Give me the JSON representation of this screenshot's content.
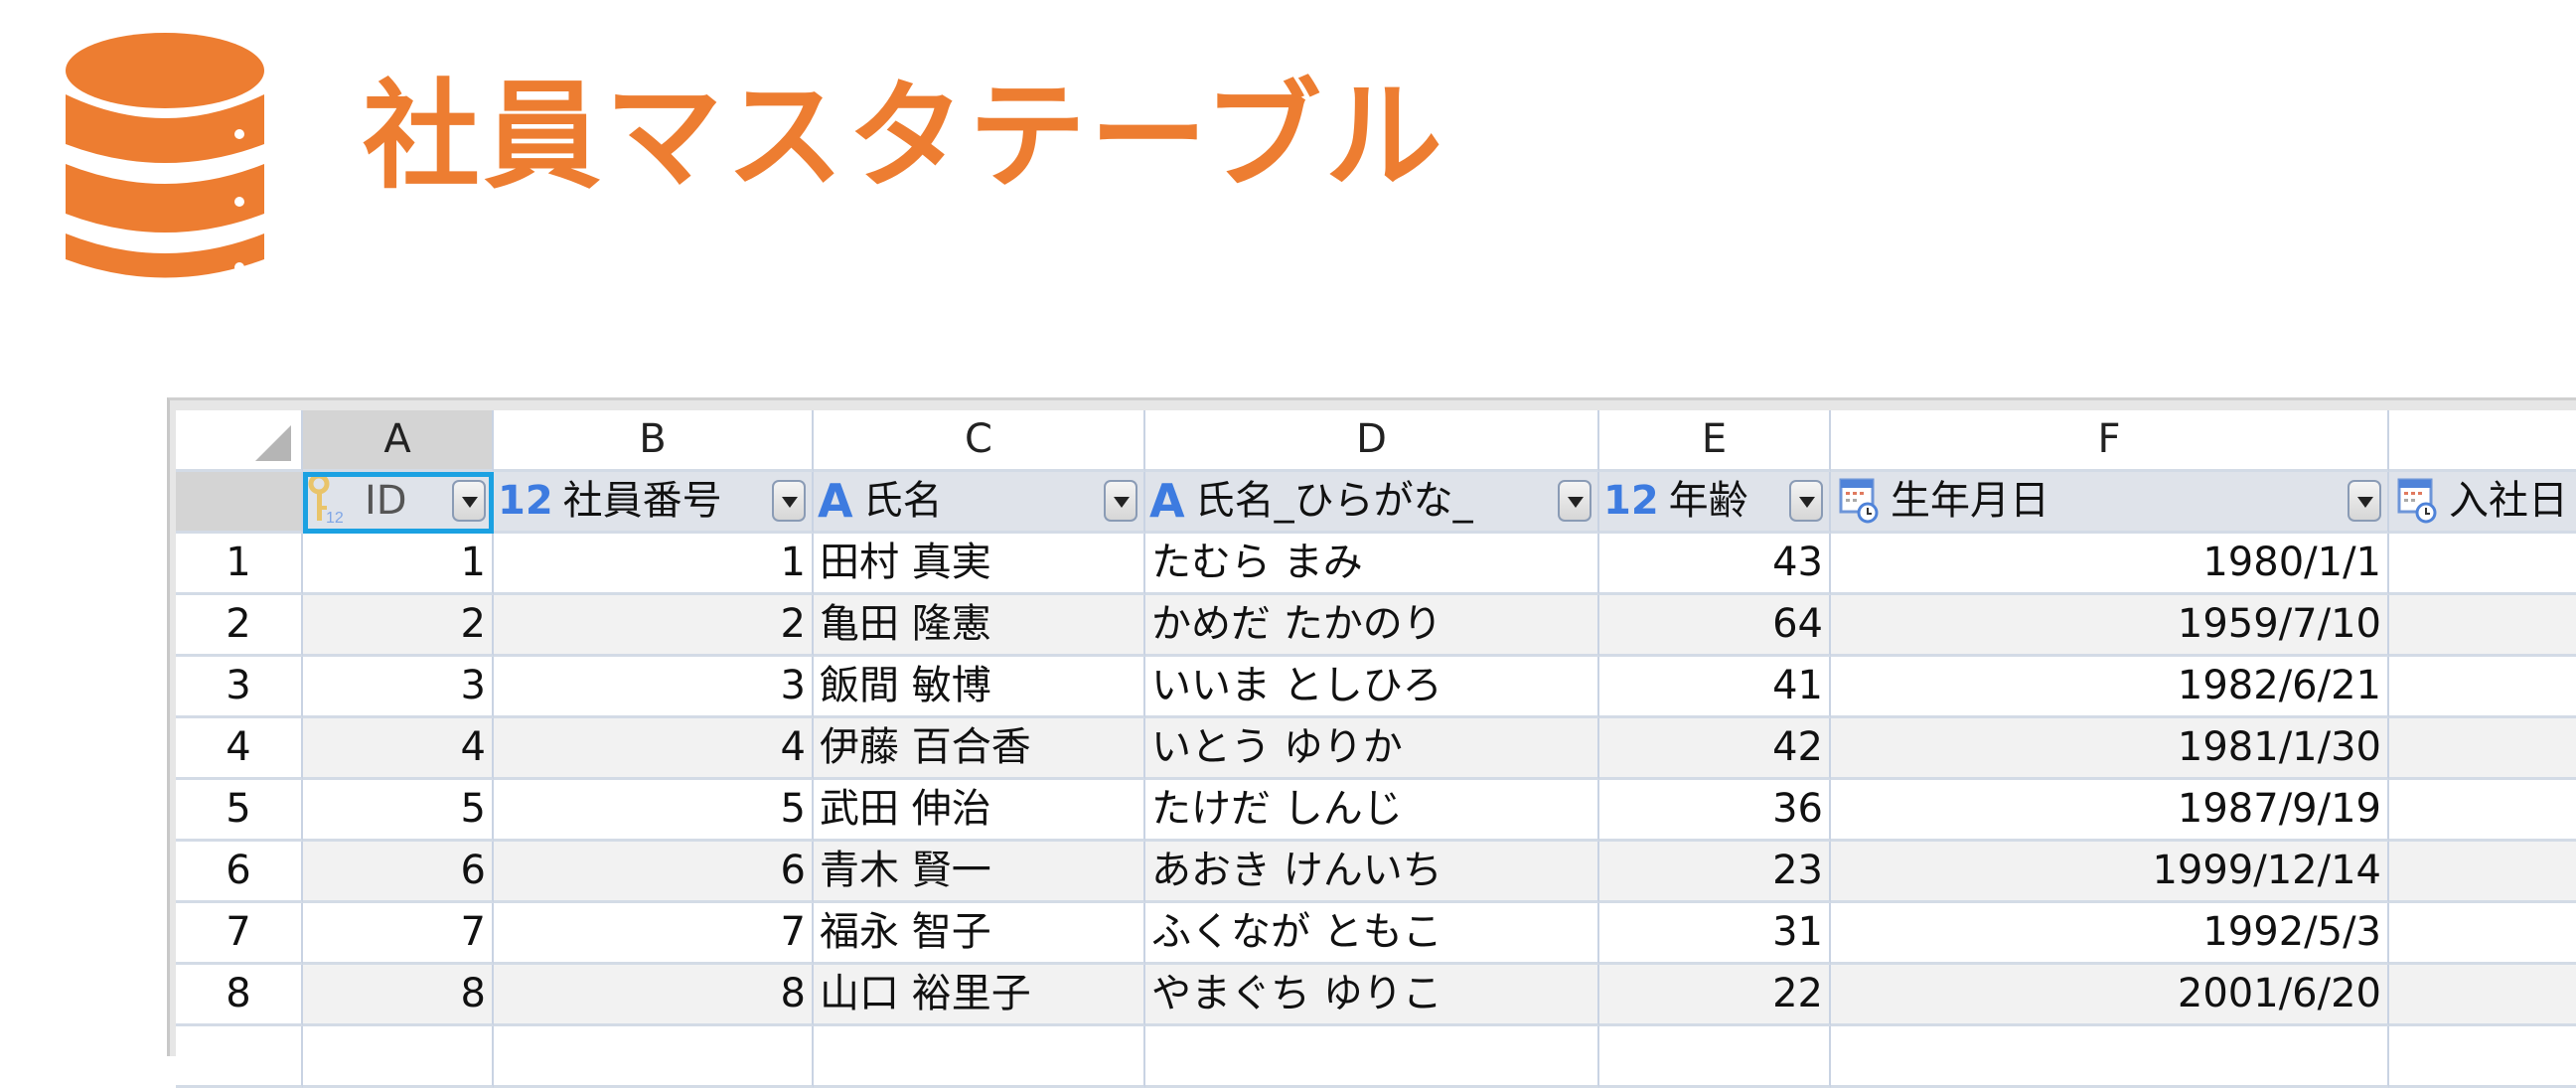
{
  "title": "社員マスタテーブル",
  "colors": {
    "accent": "#ED7D31",
    "selection": "#1ba1e2",
    "type_icon": "#3d7be0"
  },
  "columns": [
    {
      "letter": "A",
      "name": "ID",
      "type_icon": "key-number-icon",
      "type_text": "12"
    },
    {
      "letter": "B",
      "name": "社員番号",
      "type_icon": "number-type-icon",
      "type_text": "12"
    },
    {
      "letter": "C",
      "name": "氏名",
      "type_icon": "text-type-icon",
      "type_text": "A"
    },
    {
      "letter": "D",
      "name": "氏名_ひらがな_",
      "type_icon": "text-type-icon",
      "type_text": "A"
    },
    {
      "letter": "E",
      "name": "年齢",
      "type_icon": "number-type-icon",
      "type_text": "12"
    },
    {
      "letter": "F",
      "name": "生年月日",
      "type_icon": "calendar-icon"
    },
    {
      "letter": "",
      "name": "入社日",
      "type_icon": "calendar-icon"
    }
  ],
  "rows": [
    {
      "n": "1",
      "id": "1",
      "no": "1",
      "name": "田村 真実",
      "kana": "たむら まみ",
      "age": "43",
      "birth": "1980/1/1"
    },
    {
      "n": "2",
      "id": "2",
      "no": "2",
      "name": "亀田 隆憲",
      "kana": "かめだ たかのり",
      "age": "64",
      "birth": "1959/7/10"
    },
    {
      "n": "3",
      "id": "3",
      "no": "3",
      "name": "飯間 敏博",
      "kana": "いいま としひろ",
      "age": "41",
      "birth": "1982/6/21"
    },
    {
      "n": "4",
      "id": "4",
      "no": "4",
      "name": "伊藤 百合香",
      "kana": "いとう ゆりか",
      "age": "42",
      "birth": "1981/1/30"
    },
    {
      "n": "5",
      "id": "5",
      "no": "5",
      "name": "武田 伸治",
      "kana": "たけだ しんじ",
      "age": "36",
      "birth": "1987/9/19"
    },
    {
      "n": "6",
      "id": "6",
      "no": "6",
      "name": "青木 賢一",
      "kana": "あおき けんいち",
      "age": "23",
      "birth": "1999/12/14"
    },
    {
      "n": "7",
      "id": "7",
      "no": "7",
      "name": "福永 智子",
      "kana": "ふくなが ともこ",
      "age": "31",
      "birth": "1992/5/3"
    },
    {
      "n": "8",
      "id": "8",
      "no": "8",
      "name": "山口 裕里子",
      "kana": "やまぐち ゆりこ",
      "age": "22",
      "birth": "2001/6/20"
    }
  ]
}
